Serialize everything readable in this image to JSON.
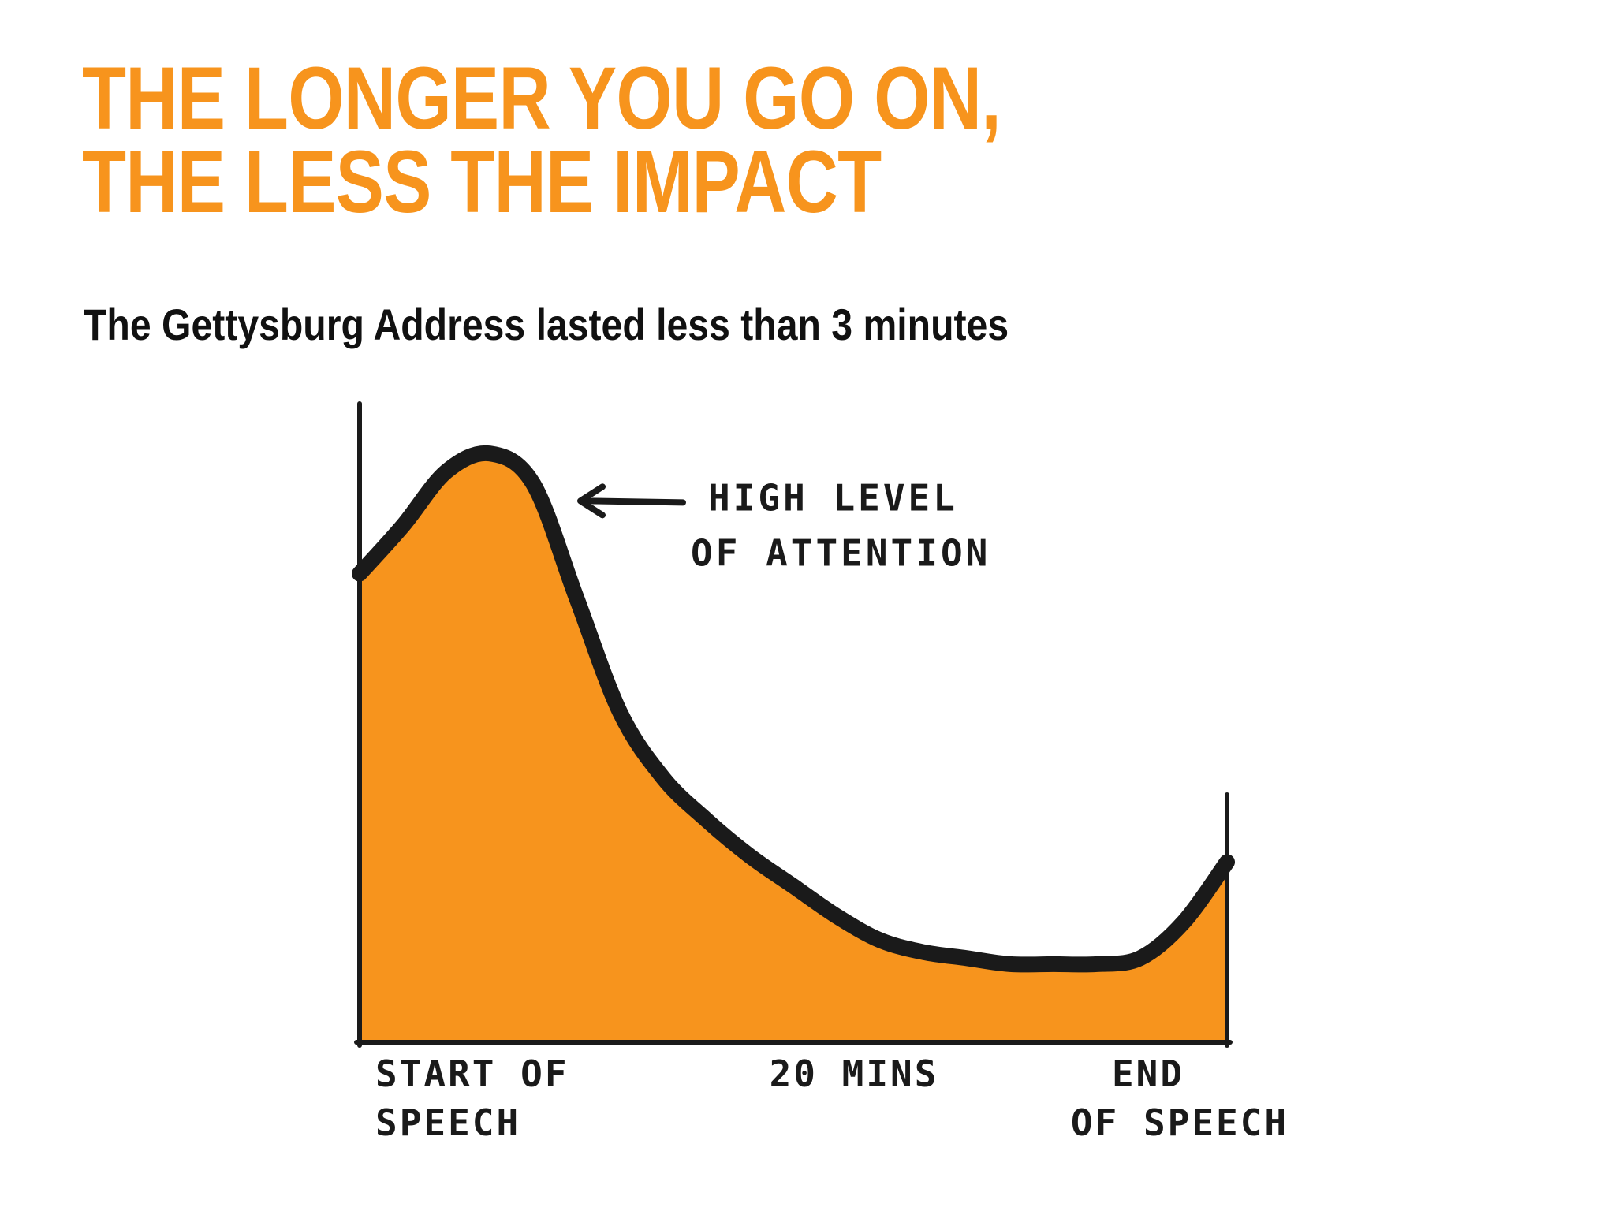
{
  "header": {
    "title_line1": "THE LONGER YOU GO ON,",
    "title_line2": "THE LESS THE IMPACT",
    "subtitle_text": "The Gettysburg Address lasted less than ",
    "subtitle_emphasis": "3 minutes"
  },
  "colors": {
    "accent": "#f7941d",
    "ink": "#1a1a1a"
  },
  "chart_data": {
    "type": "area",
    "title": "THE LONGER YOU GO ON, THE LESS THE IMPACT",
    "subtitle": "The Gettysburg Address lasted less than 3 minutes",
    "x": [
      0,
      0.05,
      0.1,
      0.15,
      0.2,
      0.25,
      0.3,
      0.35,
      0.4,
      0.45,
      0.5,
      0.55,
      0.6,
      0.65,
      0.7,
      0.75,
      0.8,
      0.85,
      0.9,
      0.95,
      1.0
    ],
    "series": [
      {
        "values": [
          0.78,
          0.86,
          0.95,
          0.98,
          0.93,
          0.74,
          0.55,
          0.44,
          0.37,
          0.31,
          0.26,
          0.21,
          0.17,
          0.15,
          0.14,
          0.13,
          0.13,
          0.13,
          0.14,
          0.2,
          0.3
        ]
      }
    ],
    "xtick_labels": [
      {
        "x": 0.0,
        "lines": [
          "START OF",
          "SPEECH"
        ]
      },
      {
        "x": 0.57,
        "lines": [
          "20 MINS"
        ]
      },
      {
        "x": 1.0,
        "lines": [
          "END",
          "OF SPEECH"
        ]
      }
    ],
    "annotations": [
      {
        "x": 0.2,
        "y": 0.93,
        "lines": [
          "HIGH LEVEL",
          "OF ATTENTION"
        ]
      }
    ],
    "xlim": [
      0,
      1
    ],
    "ylim": [
      0,
      1
    ],
    "grid": false,
    "axis_labels_shown": false
  }
}
